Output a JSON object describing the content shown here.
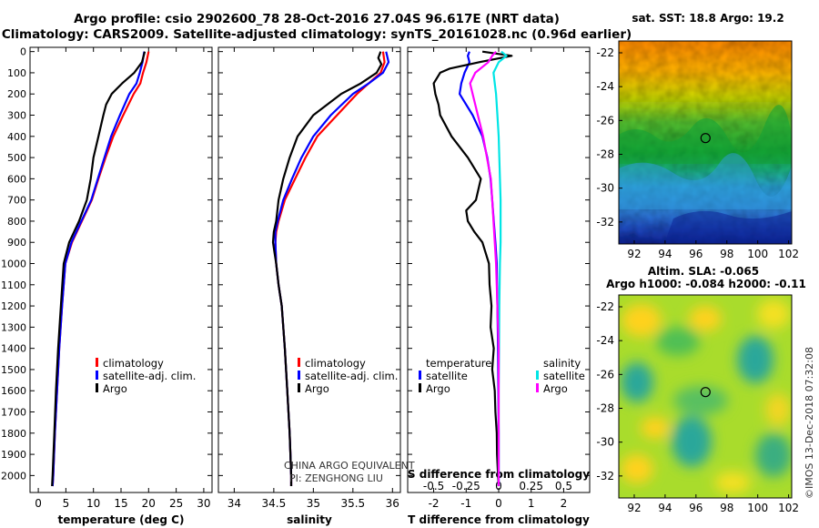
{
  "title_line1": "Argo profile: csio 2902600_78 28-Oct-2016 27.04S 96.617E (NRT data)",
  "title_line2": "Climatology: CARS2009. Satellite-adjusted climatology: synTS_20161028.nc (0.96d earlier)",
  "credit_line1": "CHINA ARGO EQUIVALENT",
  "credit_line2": "PI: ZENGHONG LIU",
  "imos_stamp": "©IMOS 13-Dec-2018 07:32:08",
  "map_sst": {
    "title": "sat. SST: 18.8 Argo: 19.2",
    "x_ticks": [
      "92",
      "94",
      "96",
      "98",
      "100",
      "102"
    ],
    "y_ticks": [
      "-22",
      "-24",
      "-26",
      "-28",
      "-30",
      "-32"
    ],
    "marker": {
      "lon": 96.617,
      "lat": -27.04
    }
  },
  "map_sla": {
    "title1": "Altim. SLA: -0.065",
    "title2": "Argo h1000: -0.084 h2000: -0.11",
    "x_ticks": [
      "92",
      "94",
      "96",
      "98",
      "100",
      "102"
    ],
    "y_ticks": [
      "-22",
      "-24",
      "-26",
      "-28",
      "-30",
      "-32"
    ],
    "marker": {
      "lon": 96.617,
      "lat": -27.04
    }
  },
  "depth_ticks": [
    "0",
    "100",
    "200",
    "300",
    "400",
    "500",
    "600",
    "700",
    "800",
    "900",
    "1000",
    "1100",
    "1200",
    "1300",
    "1400",
    "1500",
    "1600",
    "1700",
    "1800",
    "1900",
    "2000"
  ],
  "colors": {
    "climatology": "#ff0000",
    "satellite": "#0000ff",
    "argo": "#000000",
    "sat_salinity": "#00e5e5",
    "argo_salinity": "#ff00ff"
  },
  "chart_data": [
    {
      "type": "line",
      "name": "temperature-profile",
      "xlabel": "temperature (deg C)",
      "ylabel": "depth",
      "xlim": [
        -1.5,
        31.5
      ],
      "ylim": [
        2080,
        -20
      ],
      "x_ticks": [
        "0",
        "5",
        "10",
        "15",
        "20",
        "25",
        "30"
      ],
      "legend": [
        "climatology",
        "satellite-adj. clim.",
        "Argo"
      ],
      "series": [
        {
          "name": "climatology",
          "color": "#ff0000",
          "depth": [
            0,
            50,
            100,
            150,
            200,
            300,
            400,
            500,
            600,
            700,
            800,
            900,
            1000,
            1200,
            1400,
            1600,
            1800,
            2000,
            2050
          ],
          "values": [
            20.0,
            19.6,
            19.0,
            18.5,
            17.3,
            15.4,
            13.6,
            12.2,
            10.9,
            9.7,
            7.9,
            6.1,
            4.9,
            4.3,
            3.8,
            3.4,
            3.0,
            2.7,
            2.6
          ]
        },
        {
          "name": "satellite-adj. clim.",
          "color": "#0000ff",
          "depth": [
            0,
            50,
            100,
            150,
            200,
            300,
            400,
            500,
            600,
            700,
            800,
            900,
            1000,
            1200,
            1400,
            1600,
            1800,
            2000,
            2050
          ],
          "values": [
            19.2,
            18.9,
            18.4,
            17.8,
            16.5,
            14.8,
            13.2,
            12.0,
            10.8,
            9.6,
            7.8,
            6.0,
            4.9,
            4.3,
            3.8,
            3.4,
            3.0,
            2.7,
            2.6
          ]
        },
        {
          "name": "Argo",
          "color": "#000000",
          "depth": [
            0,
            50,
            100,
            150,
            200,
            250,
            300,
            400,
            500,
            600,
            700,
            800,
            900,
            1000,
            1200,
            1400,
            1600,
            1800,
            2000,
            2050
          ],
          "values": [
            19.3,
            18.8,
            17.4,
            15.2,
            13.3,
            12.3,
            11.8,
            10.9,
            10.0,
            9.5,
            8.8,
            7.4,
            5.6,
            4.6,
            4.1,
            3.6,
            3.2,
            2.9,
            2.6,
            2.5
          ]
        }
      ]
    },
    {
      "type": "line",
      "name": "salinity-profile",
      "xlabel": "salinity",
      "ylabel": "depth",
      "xlim": [
        33.8,
        36.1
      ],
      "ylim": [
        2080,
        -20
      ],
      "x_ticks": [
        "34",
        "34.5",
        "35",
        "35.5",
        "36"
      ],
      "legend": [
        "climatology",
        "satellite-adj. clim.",
        "Argo"
      ],
      "series": [
        {
          "name": "climatology",
          "color": "#ff0000",
          "depth": [
            0,
            50,
            100,
            150,
            200,
            300,
            400,
            500,
            600,
            700,
            800,
            850,
            900,
            1000,
            1100,
            1200,
            1400,
            1600,
            1800,
            2000,
            2050
          ],
          "values": [
            35.88,
            35.9,
            35.85,
            35.7,
            35.55,
            35.3,
            35.05,
            34.9,
            34.77,
            34.64,
            34.56,
            34.53,
            34.52,
            34.53,
            34.56,
            34.6,
            34.64,
            34.67,
            34.7,
            34.72,
            34.72
          ]
        },
        {
          "name": "satellite-adj. clim.",
          "color": "#0000ff",
          "depth": [
            0,
            50,
            100,
            150,
            200,
            300,
            400,
            500,
            600,
            700,
            800,
            850,
            900,
            1000,
            1100,
            1200,
            1400,
            1600,
            1800,
            2000,
            2050
          ],
          "values": [
            35.92,
            35.95,
            35.88,
            35.7,
            35.5,
            35.22,
            35.0,
            34.85,
            34.73,
            34.62,
            34.55,
            34.52,
            34.52,
            34.53,
            34.56,
            34.6,
            34.64,
            34.67,
            34.7,
            34.72,
            34.72
          ]
        },
        {
          "name": "Argo",
          "color": "#000000",
          "depth": [
            0,
            30,
            60,
            100,
            150,
            200,
            300,
            400,
            500,
            600,
            700,
            800,
            850,
            900,
            950,
            1000,
            1100,
            1200,
            1400,
            1600,
            1800,
            2000,
            2050
          ],
          "values": [
            35.85,
            35.82,
            35.86,
            35.8,
            35.6,
            35.35,
            35.0,
            34.8,
            34.7,
            34.62,
            34.56,
            34.53,
            34.5,
            34.49,
            34.51,
            34.53,
            34.56,
            34.6,
            34.64,
            34.67,
            34.7,
            34.72,
            34.72
          ]
        }
      ]
    },
    {
      "type": "line",
      "name": "difference-profile",
      "xlabel": "T difference from climatology",
      "ylabel": "depth",
      "xlim": [
        -2.8,
        2.8
      ],
      "ylim": [
        2080,
        -20
      ],
      "x_ticks": [
        "-2",
        "-1",
        "0",
        "1",
        "2"
      ],
      "secondary_xlabel": "S difference from climatology",
      "secondary_xlim": [
        -0.7,
        0.7
      ],
      "secondary_x_ticks": [
        "-0.5",
        "-0.25",
        "0",
        "0.25",
        "0.5"
      ],
      "legend": {
        "temperature": [
          "satellite",
          "Argo"
        ],
        "salinity": [
          "satellite",
          "Argo"
        ]
      },
      "series": [
        {
          "name": "temperature satellite",
          "color": "#0000ff",
          "depth": [
            0,
            20,
            50,
            100,
            150,
            200,
            300,
            400,
            500,
            600,
            700,
            800,
            900,
            1000,
            1200,
            1400,
            1600,
            1800,
            2000,
            2050
          ],
          "values": [
            -0.9,
            -0.95,
            -0.9,
            -1.05,
            -1.15,
            -1.2,
            -0.8,
            -0.5,
            -0.35,
            -0.25,
            -0.2,
            -0.15,
            -0.1,
            -0.06,
            -0.04,
            -0.02,
            -0.01,
            0.0,
            0.0,
            0.0
          ]
        },
        {
          "name": "temperature Argo",
          "color": "#000000",
          "depth": [
            0,
            20,
            50,
            80,
            100,
            150,
            200,
            250,
            300,
            400,
            500,
            600,
            700,
            750,
            800,
            850,
            900,
            1000,
            1100,
            1200,
            1300,
            1400,
            1500,
            1600,
            1700,
            1800,
            1900,
            2000,
            2050
          ],
          "values": [
            -0.5,
            0.4,
            -0.6,
            -1.5,
            -1.8,
            -2.0,
            -1.95,
            -1.85,
            -1.8,
            -1.45,
            -0.95,
            -0.55,
            -0.7,
            -1.0,
            -0.95,
            -0.75,
            -0.5,
            -0.3,
            -0.28,
            -0.22,
            -0.25,
            -0.15,
            -0.2,
            -0.12,
            -0.1,
            -0.06,
            -0.05,
            -0.02,
            0.0
          ]
        },
        {
          "name": "salinity satellite",
          "color": "#00e5e5",
          "depth": [
            0,
            20,
            50,
            100,
            150,
            200,
            300,
            400,
            500,
            600,
            700,
            800,
            900,
            1000,
            1200,
            1400,
            1600,
            1800,
            2000,
            2050
          ],
          "values": [
            0.02,
            0.06,
            0.0,
            -0.04,
            -0.03,
            -0.02,
            -0.01,
            0.0,
            0.005,
            0.01,
            0.015,
            0.015,
            0.015,
            0.01,
            0.005,
            0.003,
            0.0,
            0.0,
            0.0,
            0.0
          ]
        },
        {
          "name": "salinity Argo",
          "color": "#ff00ff",
          "depth": [
            0,
            20,
            50,
            100,
            150,
            200,
            300,
            400,
            500,
            600,
            700,
            800,
            900,
            1000,
            1200,
            1400,
            1600,
            1800,
            2000,
            2050
          ],
          "values": [
            -0.02,
            -0.05,
            -0.08,
            -0.18,
            -0.22,
            -0.2,
            -0.16,
            -0.12,
            -0.09,
            -0.06,
            -0.05,
            -0.04,
            -0.03,
            -0.02,
            -0.01,
            0.0,
            0.0,
            0.0,
            0.0,
            0.0
          ]
        }
      ]
    }
  ]
}
